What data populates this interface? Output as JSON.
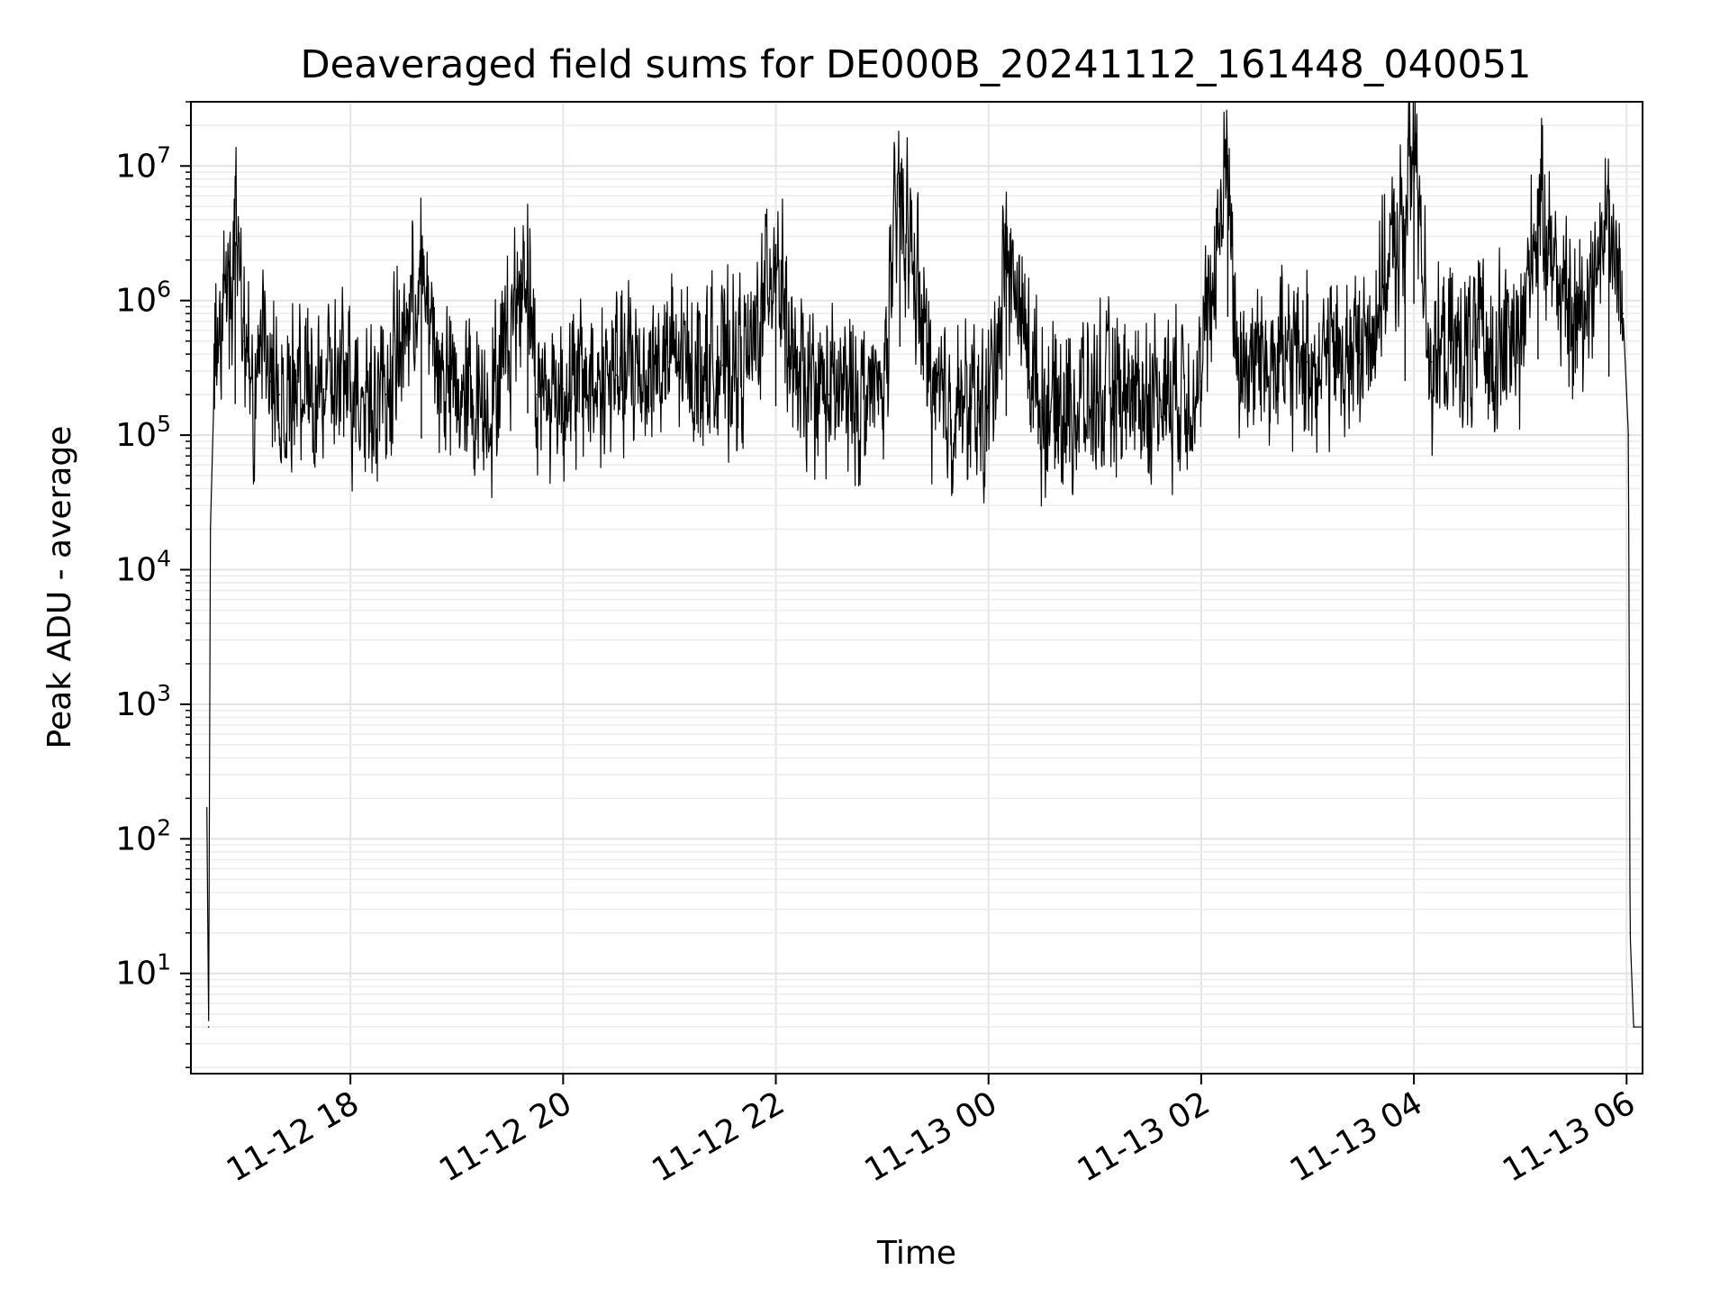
{
  "chart_data": {
    "type": "line",
    "title": "Deaveraged field sums for DE000B_20241112_161448_040051",
    "xlabel": "Time",
    "ylabel": "Peak ADU - average",
    "x_axis": {
      "type": "datetime",
      "range": [
        "2024-11-12 16:30",
        "2024-11-13 06:09"
      ],
      "ticks": [
        {
          "value": "2024-11-12 18:00",
          "label": "11-12 18"
        },
        {
          "value": "2024-11-12 20:00",
          "label": "11-12 20"
        },
        {
          "value": "2024-11-12 22:00",
          "label": "11-12 22"
        },
        {
          "value": "2024-11-13 00:00",
          "label": "11-13 00"
        },
        {
          "value": "2024-11-13 02:00",
          "label": "11-13 02"
        },
        {
          "value": "2024-11-13 04:00",
          "label": "11-13 04"
        },
        {
          "value": "2024-11-13 06:00",
          "label": "11-13 06"
        }
      ]
    },
    "y_axis": {
      "scale": "log",
      "range": [
        1.8,
        30000000
      ],
      "ticks": [
        {
          "value": 10,
          "base": "10",
          "exp": "1"
        },
        {
          "value": 100,
          "base": "10",
          "exp": "2"
        },
        {
          "value": 1000,
          "base": "10",
          "exp": "3"
        },
        {
          "value": 10000,
          "base": "10",
          "exp": "4"
        },
        {
          "value": 100000,
          "base": "10",
          "exp": "5"
        },
        {
          "value": 1000000,
          "base": "10",
          "exp": "6"
        },
        {
          "value": 10000000,
          "base": "10",
          "exp": "7"
        }
      ]
    },
    "grid": true,
    "line_color": "#000000",
    "series": [
      {
        "x": [
          "2024-11-12 16:39",
          "2024-11-12 16:40",
          "2024-11-12 16:41",
          "2024-11-12 16:43",
          "2024-11-12 16:45",
          "2024-11-12 16:50",
          "2024-11-12 16:55",
          "2024-11-12 17:00",
          "2024-11-12 17:05",
          "2024-11-12 17:10",
          "2024-11-12 17:15",
          "2024-11-12 17:20",
          "2024-11-12 17:30",
          "2024-11-12 17:45",
          "2024-11-12 18:00",
          "2024-11-12 18:20",
          "2024-11-12 18:40",
          "2024-11-12 18:50",
          "2024-11-12 19:00",
          "2024-11-12 19:20",
          "2024-11-12 19:40",
          "2024-11-12 19:45",
          "2024-11-12 20:00",
          "2024-11-12 20:30",
          "2024-11-12 21:00",
          "2024-11-12 21:30",
          "2024-11-12 21:45",
          "2024-11-12 22:00",
          "2024-11-12 22:10",
          "2024-11-12 22:30",
          "2024-11-12 23:00",
          "2024-11-12 23:10",
          "2024-11-12 23:30",
          "2024-11-13 00:00",
          "2024-11-13 00:10",
          "2024-11-13 00:30",
          "2024-11-13 01:00",
          "2024-11-13 01:30",
          "2024-11-13 02:00",
          "2024-11-13 02:15",
          "2024-11-13 02:20",
          "2024-11-13 02:40",
          "2024-11-13 03:00",
          "2024-11-13 03:30",
          "2024-11-13 03:55",
          "2024-11-13 04:00",
          "2024-11-13 04:10",
          "2024-11-13 04:30",
          "2024-11-13 05:00",
          "2024-11-13 05:10",
          "2024-11-13 05:30",
          "2024-11-13 05:50",
          "2024-11-13 05:58",
          "2024-11-13 06:00",
          "2024-11-13 06:01",
          "2024-11-13 06:02",
          "2024-11-13 06:04",
          "2024-11-13 06:09"
        ],
        "y": [
          170,
          4,
          20000,
          200000,
          600000,
          800000,
          2700000,
          500000,
          200000,
          300000,
          250000,
          200000,
          250000,
          220000,
          250000,
          200000,
          1500000,
          300000,
          200000,
          180000,
          2300000,
          200000,
          220000,
          280000,
          350000,
          330000,
          350000,
          2600000,
          250000,
          200000,
          200000,
          7200000,
          180000,
          150000,
          2200000,
          160000,
          180000,
          200000,
          250000,
          12000000,
          350000,
          400000,
          350000,
          400000,
          4000000,
          15000000,
          350000,
          450000,
          500000,
          5800000,
          600000,
          4300000,
          800000,
          200000,
          100000,
          20,
          4,
          4
        ]
      }
    ]
  }
}
